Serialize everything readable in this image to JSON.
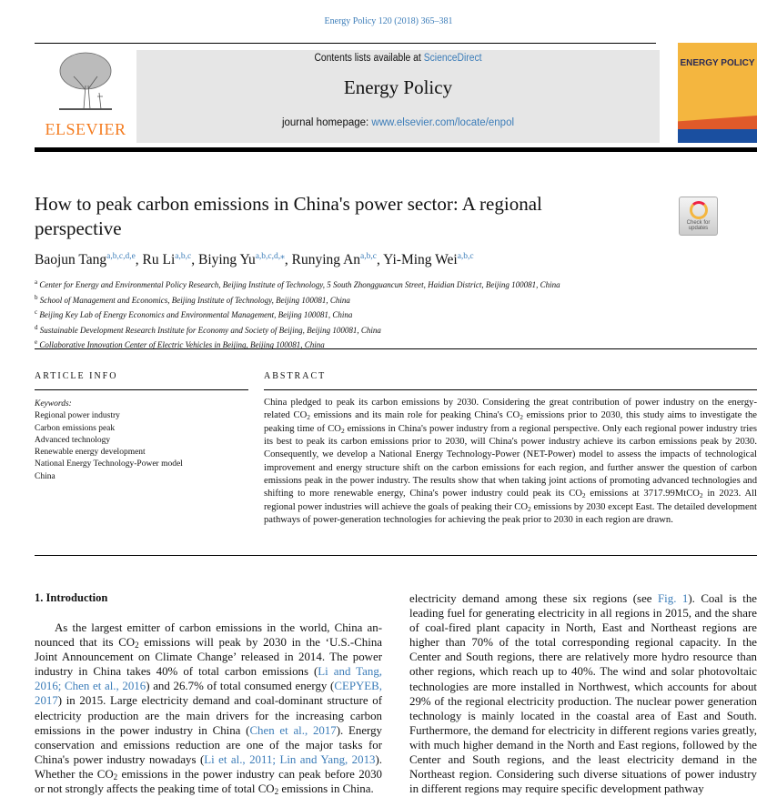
{
  "header": {
    "citation": "Energy Policy 120 (2018) 365–381",
    "publisher_logo_text": "ELSEVIER",
    "contents_prefix": "Contents lists available at ",
    "contents_link": "ScienceDirect",
    "journal_name": "Energy Policy",
    "homepage_prefix": "journal homepage: ",
    "homepage_link": "www.elsevier.com/locate/enpol",
    "cover_title": "ENERGY POLICY",
    "colors": {
      "elsevier_orange": "#f47c20",
      "cover_yellow": "#f4b63f",
      "link_blue": "#3b7cb8"
    }
  },
  "article": {
    "title": "How to peak carbon emissions in China's power sector: A regional perspective",
    "check_updates": "Check for updates",
    "authors": [
      {
        "name": "Baojun Tang",
        "sup": "a,b,c,d,e",
        "sep": ", "
      },
      {
        "name": "Ru Li",
        "sup": "a,b,c",
        "sep": ", "
      },
      {
        "name": "Biying Yu",
        "sup": "a,b,c,d,⁎",
        "sep": ", "
      },
      {
        "name": "Runying An",
        "sup": "a,b,c",
        "sep": ", "
      },
      {
        "name": "Yi-Ming Wei",
        "sup": "a,b,c",
        "sep": ""
      }
    ],
    "affiliations": [
      {
        "key": "a",
        "text": "Center for Energy and Environmental Policy Research, Beijing Institute of Technology, 5 South Zhongguancun Street, Haidian District, Beijing 100081, China"
      },
      {
        "key": "b",
        "text": "School of Management and Economics, Beijing Institute of Technology, Beijing 100081, China"
      },
      {
        "key": "c",
        "text": "Beijing Key Lab of Energy Economics and Environmental Management, Beijing 100081, China"
      },
      {
        "key": "d",
        "text": "Sustainable Development Research Institute for Economy and Society of Beijing, Beijing 100081, China"
      },
      {
        "key": "e",
        "text": "Collaborative Innovation Center of Electric Vehicles in Beijing, Beijing 100081, China"
      }
    ]
  },
  "article_info": {
    "heading": "ARTICLE INFO",
    "keywords_label": "Keywords:",
    "keywords": [
      "Regional power industry",
      "Carbon emissions peak",
      "Advanced technology",
      "Renewable energy development",
      "National Energy Technology-Power model",
      "China"
    ]
  },
  "abstract": {
    "heading": "ABSTRACT",
    "segments": [
      {
        "t": "China pledged to peak its carbon emissions by 2030. Considering the great contribution of power industry on the energy-related CO"
      },
      {
        "sub": "2"
      },
      {
        "t": " emissions and its main role for peaking China's CO"
      },
      {
        "sub": "2"
      },
      {
        "t": " emissions prior to 2030, this study aims to investigate the peaking time of CO"
      },
      {
        "sub": "2"
      },
      {
        "t": " emissions in China's power industry from a regional perspective. Only each regional power industry tries its best to peak its carbon emissions prior to 2030, will China's power industry achieve its carbon emissions peak by 2030. Consequently, we develop a National Energy Technology-Power (NET-Power) model to assess the impacts of technological improvement and energy structure shift on the carbon emissions for each region, and further answer the question of carbon emissions peak in the power industry. The results show that when taking joint actions of promoting advanced technologies and shifting to more renewable energy, China's power industry could peak its CO"
      },
      {
        "sub": "2"
      },
      {
        "t": " emissions at 3717.99MtCO"
      },
      {
        "sub": "2"
      },
      {
        "t": " in 2023. All regional power industries will achieve the goals of peaking their CO"
      },
      {
        "sub": "2"
      },
      {
        "t": " emissions by 2030 except East. The detailed development pathways of power-generation technologies for achieving the peak prior to 2030 in each region are drawn."
      }
    ]
  },
  "introduction": {
    "heading": "1.  Introduction",
    "left_segments": [
      {
        "t": "As the largest emitter of carbon emissions in the world, China an­nounced that its CO"
      },
      {
        "sub": "2"
      },
      {
        "t": " emissions will peak by 2030 in the ‘U.S.-China Joint Announcement on Climate Change’ released in 2014. The power industry in China takes 40% of total carbon emissions ("
      },
      {
        "link": "Li and Tang, 2016; Chen et al., 2016"
      },
      {
        "t": ") and 26.7% of total consumed energy ("
      },
      {
        "link": "CEPYEB, 2017"
      },
      {
        "t": ") in 2015. Large electricity demand and coal-dominant structure of electricity production are the main drivers for the increasing carbon emissions in the power industry in China ("
      },
      {
        "link": "Chen et al., 2017"
      },
      {
        "t": "). Energy conservation and emissions reduction are one of the major tasks for China's power industry nowadays ("
      },
      {
        "link": "Li et al., 2011; Lin and Yang, 2013"
      },
      {
        "t": "). Whether the CO"
      },
      {
        "sub": "2"
      },
      {
        "t": " emissions in the power industry can peak before 2030 or not strongly affects the peaking time of total CO"
      },
      {
        "sub": "2"
      },
      {
        "t": " emissions in China."
      }
    ],
    "right_segments": [
      {
        "t": "electricity demand among these six regions (see "
      },
      {
        "link": "Fig. 1"
      },
      {
        "t": "). Coal is the leading fuel for generating electricity in all regions in 2015, and the share of coal-fired plant capacity in North, East and Northeast regions are higher than 70% of the total corresponding regional capacity. In the Center and South regions, there are relatively more hydro resource than other regions, which reach up to 40%. The wind and solar photovoltaic technologies are more installed in Northwest, which accounts for about 29% of the regional electricity production. The nuclear power genera­tion technology is mainly located in the coastal area of East and South. Furthermore, the demand for electricity in different regions varies greatly, with much higher demand in the North and East regions, fol­lowed by the Center and South regions, and the least electricity demand in the Northeast region. Considering such diverse situations of power industry in different regions may require specific development pathway"
      }
    ]
  }
}
